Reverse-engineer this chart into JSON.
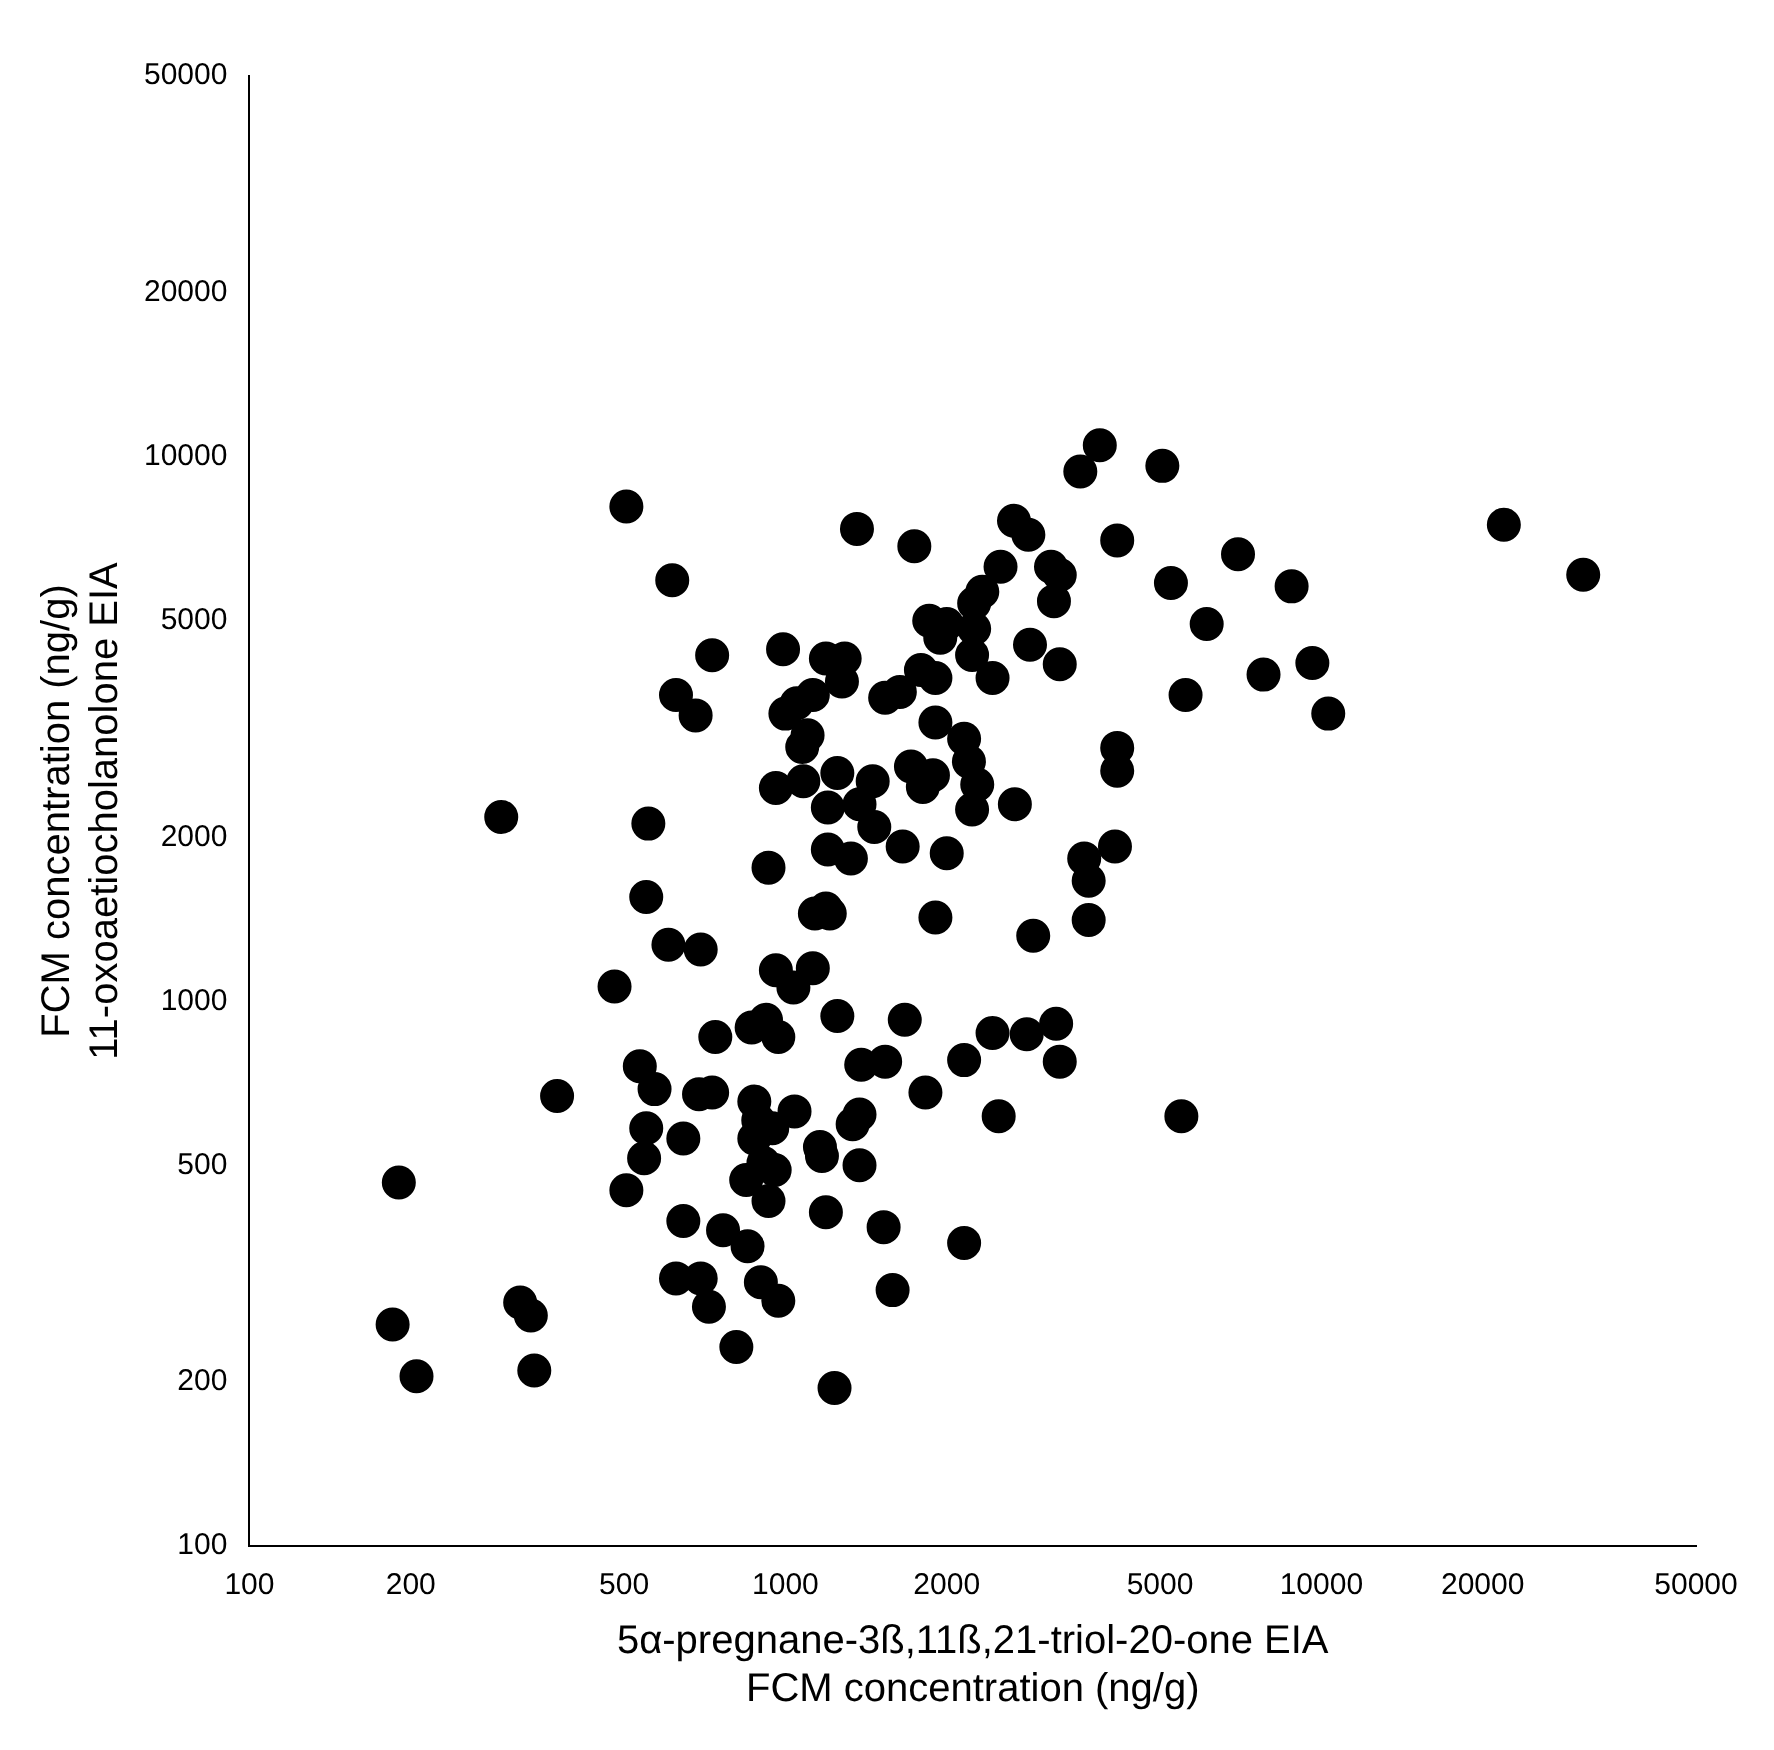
{
  "chart_data": {
    "type": "scatter",
    "xlabel": "5α-pregnane-3ß,11ß,21-triol-20-one EIA\nFCM concentration (ng/g)",
    "ylabel": "FCM concentration (ng/g)\n11-oxoaetiocholanolone EIA",
    "log": "xy",
    "grid": false,
    "legend": false,
    "marker": "circle",
    "xlim": [
      100,
      50000
    ],
    "ylim": [
      100,
      50000
    ],
    "xticks": [
      100,
      200,
      500,
      1000,
      2000,
      5000,
      10000,
      20000,
      50000
    ],
    "yticks": [
      100,
      200,
      500,
      1000,
      2000,
      5000,
      10000,
      20000,
      50000
    ],
    "series": [
      {
        "color": "#000000",
        "x": [
          185,
          190,
          205,
          295,
          320,
          335,
          340,
          375,
          480,
          505,
          505,
          535,
          545,
          550,
          555,
          550,
          570,
          605,
          615,
          625,
          645,
          645,
          625,
          680,
          695,
          695,
          690,
          720,
          730,
          730,
          740,
          765,
          810,
          850,
          845,
          865,
          875,
          875,
          920,
          900,
          890,
          930,
          930,
          910,
          945,
          955,
          960,
          970,
          970,
          960,
          990,
          1000,
          1035,
          1040,
          1050,
          1075,
          1080,
          1100,
          1125,
          1125,
          1135,
          1160,
          1170,
          1190,
          1190,
          1190,
          1200,
          1200,
          1210,
          1235,
          1250,
          1250,
          1290,
          1275,
          1335,
          1325,
          1375,
          1375,
          1360,
          1375,
          1385,
          1455,
          1465,
          1525,
          1535,
          1535,
          1585,
          1635,
          1655,
          1670,
          1715,
          1740,
          1790,
          1825,
          1805,
          1855,
          1885,
          1905,
          1905,
          1905,
          1945,
          2000,
          2000,
          2155,
          2155,
          2155,
          2200,
          2250,
          2230,
          2230,
          2250,
          2280,
          2330,
          2435,
          2435,
          2500,
          2520,
          2670,
          2680,
          2840,
          2860,
          2900,
          2820,
          3130,
          3170,
          3200,
          3250,
          3250,
          3250,
          3550,
          3610,
          3680,
          3680,
          3860,
          4120,
          4160,
          4160,
          4160,
          5050,
          5240,
          5480,
          5580,
          6110,
          6990,
          7800,
          8800,
          9620,
          10300,
          21900,
          30800
        ],
        "values": [
          255,
          465,
          205,
          2180,
          280,
          265,
          210,
          670,
          1065,
          8100,
          450,
          760,
          515,
          585,
          2120,
          1555,
          690,
          1270,
          5930,
          3650,
          560,
          395,
          310,
          3350,
          1245,
          310,
          675,
          275,
          680,
          4320,
          860,
          380,
          232,
          355,
          470,
          895,
          655,
          560,
          925,
          305,
          605,
          1760,
          430,
          505,
          585,
          490,
          2465,
          282,
          860,
          1140,
          4430,
          3375,
          1060,
          628,
          3525,
          2930,
          2535,
          3080,
          3650,
          1150,
          1450,
          540,
          520,
          4260,
          410,
          1480,
          2270,
          1900,
          1450,
          195,
          940,
          2625,
          4260,
          3865,
          595,
          1830,
          620,
          500,
          7370,
          2300,
          765,
          2535,
          2090,
          385,
          775,
          3610,
          295,
          3700,
          1925,
          925,
          2700,
          6850,
          4060,
          680,
          2475,
          5000,
          2600,
          3925,
          3250,
          1425,
          4650,
          4930,
          1870,
          3035,
          780,
          360,
          2755,
          5380,
          4325,
          2250,
          4830,
          2500,
          5650,
          3925,
          875,
          615,
          6280,
          7625,
          2300,
          7190,
          4515,
          1320,
          870,
          6280,
          5430,
          910,
          6065,
          775,
          4160,
          9390,
          1830,
          1665,
          1410,
          10500,
          1925,
          7020,
          2920,
          2650,
          9620,
          5865,
          615,
          3650,
          4930,
          6620,
          3980,
          5780,
          4180,
          3375,
          7500,
          6070
        ]
      }
    ]
  }
}
